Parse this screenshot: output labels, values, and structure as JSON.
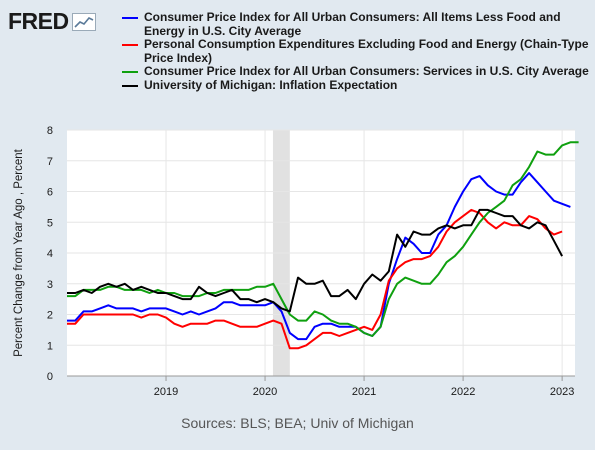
{
  "brand": {
    "logo_text": "FRED",
    "logo_icon": "line-chart-icon"
  },
  "source_note": "Sources: BLS; BEA; Univ of Michigan",
  "chart_data": {
    "type": "line",
    "title": "",
    "xlabel": "",
    "ylabel": "Percent Change from Year Ago , Percent",
    "ylim": [
      0,
      8
    ],
    "xlim": [
      2018.0,
      2023.13
    ],
    "yticks": [
      "0",
      "1",
      "2",
      "3",
      "4",
      "5",
      "6",
      "7",
      "8"
    ],
    "xticks": [
      {
        "value": 2019,
        "label": "2019"
      },
      {
        "value": 2020,
        "label": "2020"
      },
      {
        "value": 2021,
        "label": "2021"
      },
      {
        "value": 2022,
        "label": "2022"
      },
      {
        "value": 2023,
        "label": "2023"
      }
    ],
    "grid": true,
    "recession_shading": [
      2020.08,
      2020.25
    ],
    "x_start": 2018.0,
    "x_step": 0.08333,
    "series": [
      {
        "name": "Consumer Price Index for All Urban Consumers: All Items Less Food and Energy in U.S. City Average",
        "color": "#0000ff",
        "values": [
          1.8,
          1.8,
          2.1,
          2.1,
          2.2,
          2.3,
          2.2,
          2.2,
          2.2,
          2.1,
          2.2,
          2.2,
          2.2,
          2.1,
          2.0,
          2.1,
          2.0,
          2.1,
          2.2,
          2.4,
          2.4,
          2.3,
          2.3,
          2.3,
          2.3,
          2.4,
          2.1,
          1.4,
          1.2,
          1.2,
          1.6,
          1.7,
          1.7,
          1.6,
          1.6,
          1.6,
          1.4,
          1.3,
          1.6,
          3.0,
          3.8,
          4.5,
          4.3,
          4.0,
          4.0,
          4.6,
          4.9,
          5.5,
          6.0,
          6.4,
          6.5,
          6.2,
          6.0,
          5.9,
          5.9,
          6.3,
          6.6,
          6.3,
          6.0,
          5.7,
          5.6,
          5.5
        ]
      },
      {
        "name": "Personal Consumption Expenditures Excluding Food and Energy (Chain-Type Price Index)",
        "color": "#ff0000",
        "values": [
          1.7,
          1.7,
          2.0,
          2.0,
          2.0,
          2.0,
          2.0,
          2.0,
          2.0,
          1.9,
          2.0,
          2.0,
          1.9,
          1.7,
          1.6,
          1.7,
          1.7,
          1.7,
          1.8,
          1.8,
          1.7,
          1.6,
          1.6,
          1.6,
          1.7,
          1.8,
          1.7,
          0.9,
          0.9,
          1.0,
          1.2,
          1.4,
          1.4,
          1.3,
          1.4,
          1.5,
          1.6,
          1.5,
          2.0,
          3.1,
          3.5,
          3.7,
          3.8,
          3.8,
          3.9,
          4.2,
          4.7,
          5.0,
          5.2,
          5.4,
          5.3,
          5.0,
          4.8,
          5.0,
          4.9,
          4.9,
          5.2,
          5.1,
          4.8,
          4.6,
          4.7
        ]
      },
      {
        "name": "Consumer Price Index for All Urban Consumers: Services in U.S. City Average",
        "color": "#0fa00f",
        "values": [
          2.6,
          2.6,
          2.8,
          2.8,
          2.8,
          2.9,
          2.9,
          2.8,
          2.8,
          2.8,
          2.7,
          2.8,
          2.7,
          2.7,
          2.6,
          2.6,
          2.6,
          2.7,
          2.7,
          2.8,
          2.8,
          2.8,
          2.8,
          2.9,
          2.9,
          3.0,
          2.5,
          2.0,
          1.8,
          1.8,
          2.1,
          2.0,
          1.8,
          1.7,
          1.7,
          1.6,
          1.4,
          1.3,
          1.6,
          2.5,
          3.0,
          3.2,
          3.1,
          3.0,
          3.0,
          3.3,
          3.7,
          3.9,
          4.2,
          4.6,
          5.0,
          5.3,
          5.5,
          5.7,
          6.2,
          6.4,
          6.8,
          7.3,
          7.2,
          7.2,
          7.5,
          7.6,
          7.6
        ]
      },
      {
        "name": "University of Michigan: Inflation Expectation",
        "color": "#000000",
        "values": [
          2.7,
          2.7,
          2.8,
          2.7,
          2.9,
          3.0,
          2.9,
          3.0,
          2.8,
          2.9,
          2.8,
          2.7,
          2.7,
          2.6,
          2.5,
          2.5,
          2.9,
          2.7,
          2.6,
          2.7,
          2.8,
          2.5,
          2.5,
          2.4,
          2.5,
          2.4,
          2.2,
          2.1,
          3.2,
          3.0,
          3.0,
          3.1,
          2.6,
          2.6,
          2.8,
          2.5,
          3.0,
          3.3,
          3.1,
          3.4,
          4.6,
          4.2,
          4.7,
          4.6,
          4.6,
          4.8,
          4.9,
          4.8,
          4.9,
          4.9,
          5.4,
          5.4,
          5.3,
          5.2,
          5.2,
          4.9,
          4.8,
          5.0,
          4.9,
          4.4,
          3.9
        ]
      }
    ]
  }
}
